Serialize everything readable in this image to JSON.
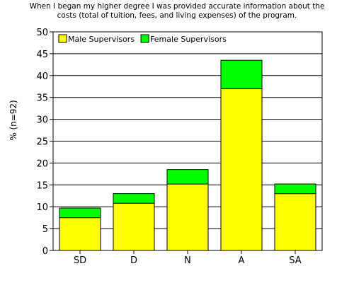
{
  "chart_data": {
    "type": "bar",
    "stacked": true,
    "title_lines": [
      "When I began my higher degree I was provided accurate information about the",
      "costs (total of tuition, fees, and living expenses) of the program."
    ],
    "ylabel": "% (n=92)",
    "xlabel": "",
    "categories": [
      "SD",
      "D",
      "N",
      "A",
      "SA"
    ],
    "series": [
      {
        "name": "Male Supervisors",
        "color": "#ffff00",
        "values": [
          7.5,
          10.8,
          15.2,
          37.0,
          13.0
        ]
      },
      {
        "name": "Female Supervisors",
        "color": "#00ff00",
        "values": [
          2.2,
          2.2,
          3.3,
          6.5,
          2.2
        ]
      }
    ],
    "ylim": [
      0,
      50
    ],
    "yticks": [
      0,
      5,
      10,
      15,
      20,
      25,
      30,
      35,
      40,
      45,
      50
    ],
    "grid": true,
    "legend_position": "top-left"
  }
}
